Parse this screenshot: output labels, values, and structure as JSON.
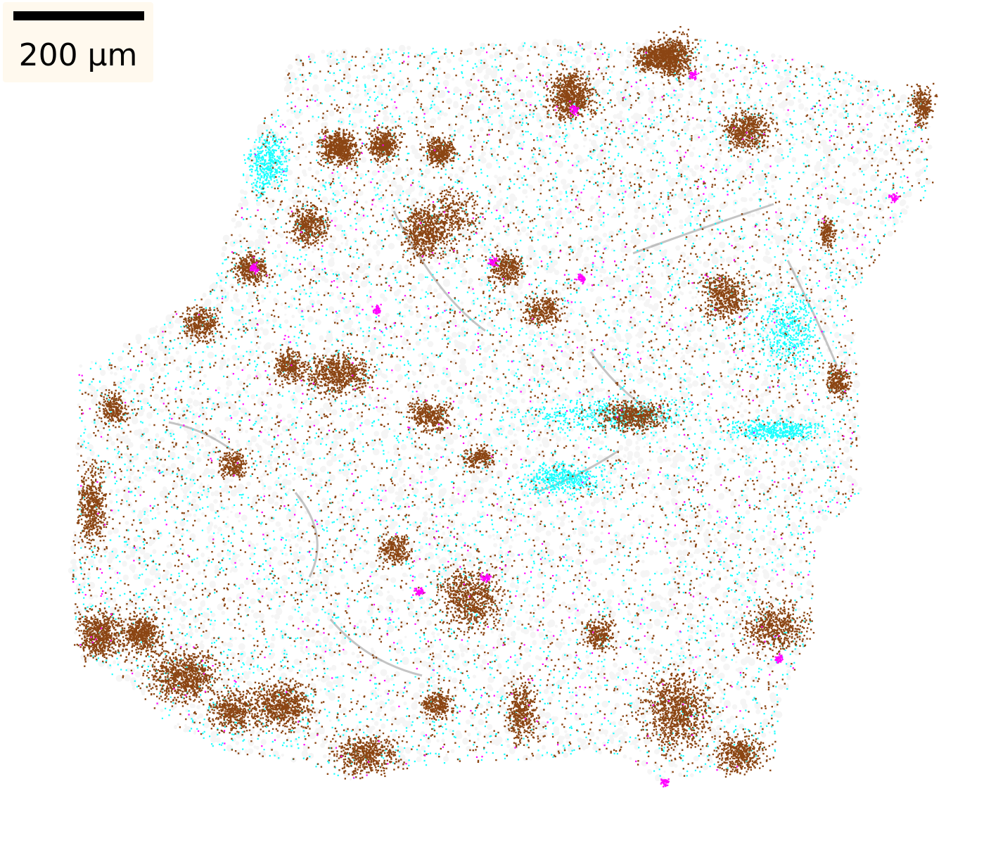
{
  "image": {
    "description_type": "spatial transcriptomics point cloud",
    "background_color": "#ffffff"
  },
  "scalebar": {
    "label": "200 µm",
    "bar_color": "#000000",
    "box_color": "#fff9ee"
  },
  "point_classes": [
    {
      "name": "cell-background",
      "color": "#b4b4b4"
    },
    {
      "name": "brown-marker",
      "color": "#8b4513"
    },
    {
      "name": "cyan-marker",
      "color": "#00ffff"
    },
    {
      "name": "magenta-marker",
      "color": "#ff00ff"
    }
  ]
}
